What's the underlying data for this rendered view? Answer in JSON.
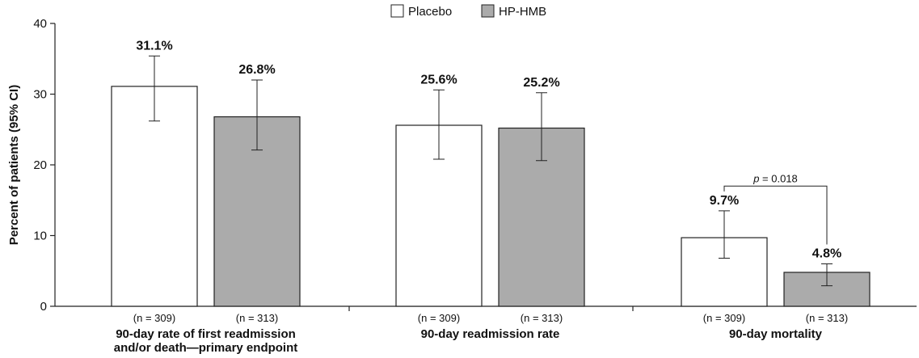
{
  "chart_data": {
    "type": "bar",
    "ylabel": "Percent of patients (95% CI)",
    "ylim": [
      0,
      40
    ],
    "yticks": [
      0,
      10,
      20,
      30,
      40
    ],
    "legend_position": "top-center",
    "grid": false,
    "categories": [
      [
        "90-day rate of first readmission",
        "and/or death—primary endpoint"
      ],
      [
        "90-day readmission rate"
      ],
      [
        "90-day mortality"
      ]
    ],
    "series": [
      {
        "name": "Placebo",
        "color": "#ffffff",
        "values": [
          31.1,
          25.6,
          9.7
        ],
        "ci_low": [
          26.2,
          20.8,
          6.8
        ],
        "ci_high": [
          35.4,
          30.6,
          13.5
        ],
        "labels": [
          "31.1%",
          "25.6%",
          "9.7%"
        ],
        "n_labels": [
          "(n = 309)",
          "(n = 309)",
          "(n = 309)"
        ]
      },
      {
        "name": "HP-HMB",
        "color": "#ababab",
        "values": [
          26.8,
          25.2,
          4.8
        ],
        "ci_low": [
          22.1,
          20.6,
          2.9
        ],
        "ci_high": [
          32.0,
          30.2,
          6.0
        ],
        "labels": [
          "26.8%",
          "25.2%",
          "4.8%"
        ],
        "n_labels": [
          "(n = 313)",
          "(n = 313)",
          "(n = 313)"
        ]
      }
    ],
    "annotations": [
      {
        "group_index": 2,
        "bracket_y": 17.0,
        "p_symbol": "p",
        "p_rest": " = 0.018"
      }
    ]
  }
}
